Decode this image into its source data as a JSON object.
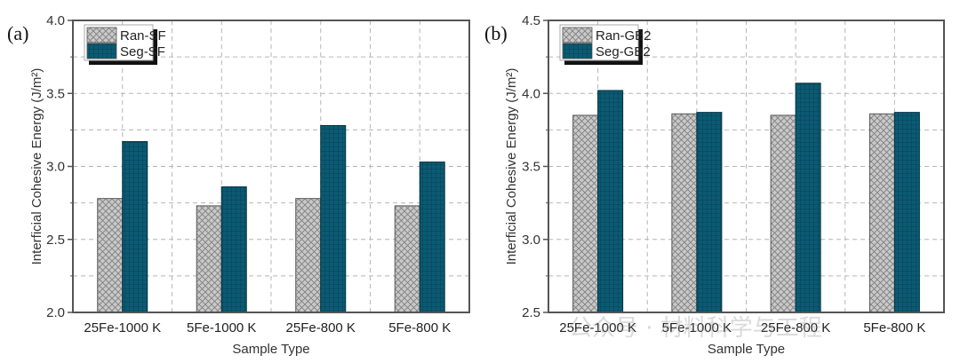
{
  "colors": {
    "ran_fill": "#c9c9c9",
    "ran_hatch": "#7f7f7f",
    "seg_fill": "#0b5a73",
    "seg_grid": "#063a4b",
    "frame": "#555555",
    "gridline": "#b5b5b5"
  },
  "watermark": "公众号 · 材料科学与工程",
  "chart_data": [
    {
      "type": "bar",
      "panel_label": "(a)",
      "title": "",
      "xlabel": "Sample Type",
      "ylabel": "Interficial Cohesive Energy (J/m²)",
      "ylim": [
        2.0,
        4.0
      ],
      "yticks": [
        "2.0",
        "2.5",
        "3.0",
        "3.5",
        "4.0"
      ],
      "ytick_values": [
        2.0,
        2.5,
        3.0,
        3.5,
        4.0
      ],
      "minor_step": 0.25,
      "grid": true,
      "legend_position": "top-left",
      "categories": [
        "25Fe-1000 K",
        "5Fe-1000 K",
        "25Fe-800 K",
        "5Fe-800 K"
      ],
      "series": [
        {
          "name": "Ran-SF",
          "style": "crosshatch-gray",
          "values": [
            2.78,
            2.73,
            2.78,
            2.73
          ]
        },
        {
          "name": "Seg-SF",
          "style": "grid-teal",
          "values": [
            3.17,
            2.86,
            3.28,
            3.03
          ]
        }
      ]
    },
    {
      "type": "bar",
      "panel_label": "(b)",
      "title": "",
      "xlabel": "Sample Type",
      "ylabel": "Interficial Cohesive Energy (J/m²)",
      "ylim": [
        2.5,
        4.5
      ],
      "yticks": [
        "2.5",
        "3.0",
        "3.5",
        "4.0",
        "4.5"
      ],
      "ytick_values": [
        2.5,
        3.0,
        3.5,
        4.0,
        4.5
      ],
      "minor_step": 0.25,
      "grid": true,
      "legend_position": "top-left",
      "categories": [
        "25Fe-1000 K",
        "5Fe-1000 K",
        "25Fe-800 K",
        "5Fe-800 K"
      ],
      "series": [
        {
          "name": "Ran-GB2",
          "style": "crosshatch-gray",
          "values": [
            3.85,
            3.86,
            3.85,
            3.86
          ]
        },
        {
          "name": "Seg-GB2",
          "style": "grid-teal",
          "values": [
            4.02,
            3.87,
            4.07,
            3.87
          ]
        }
      ]
    }
  ]
}
